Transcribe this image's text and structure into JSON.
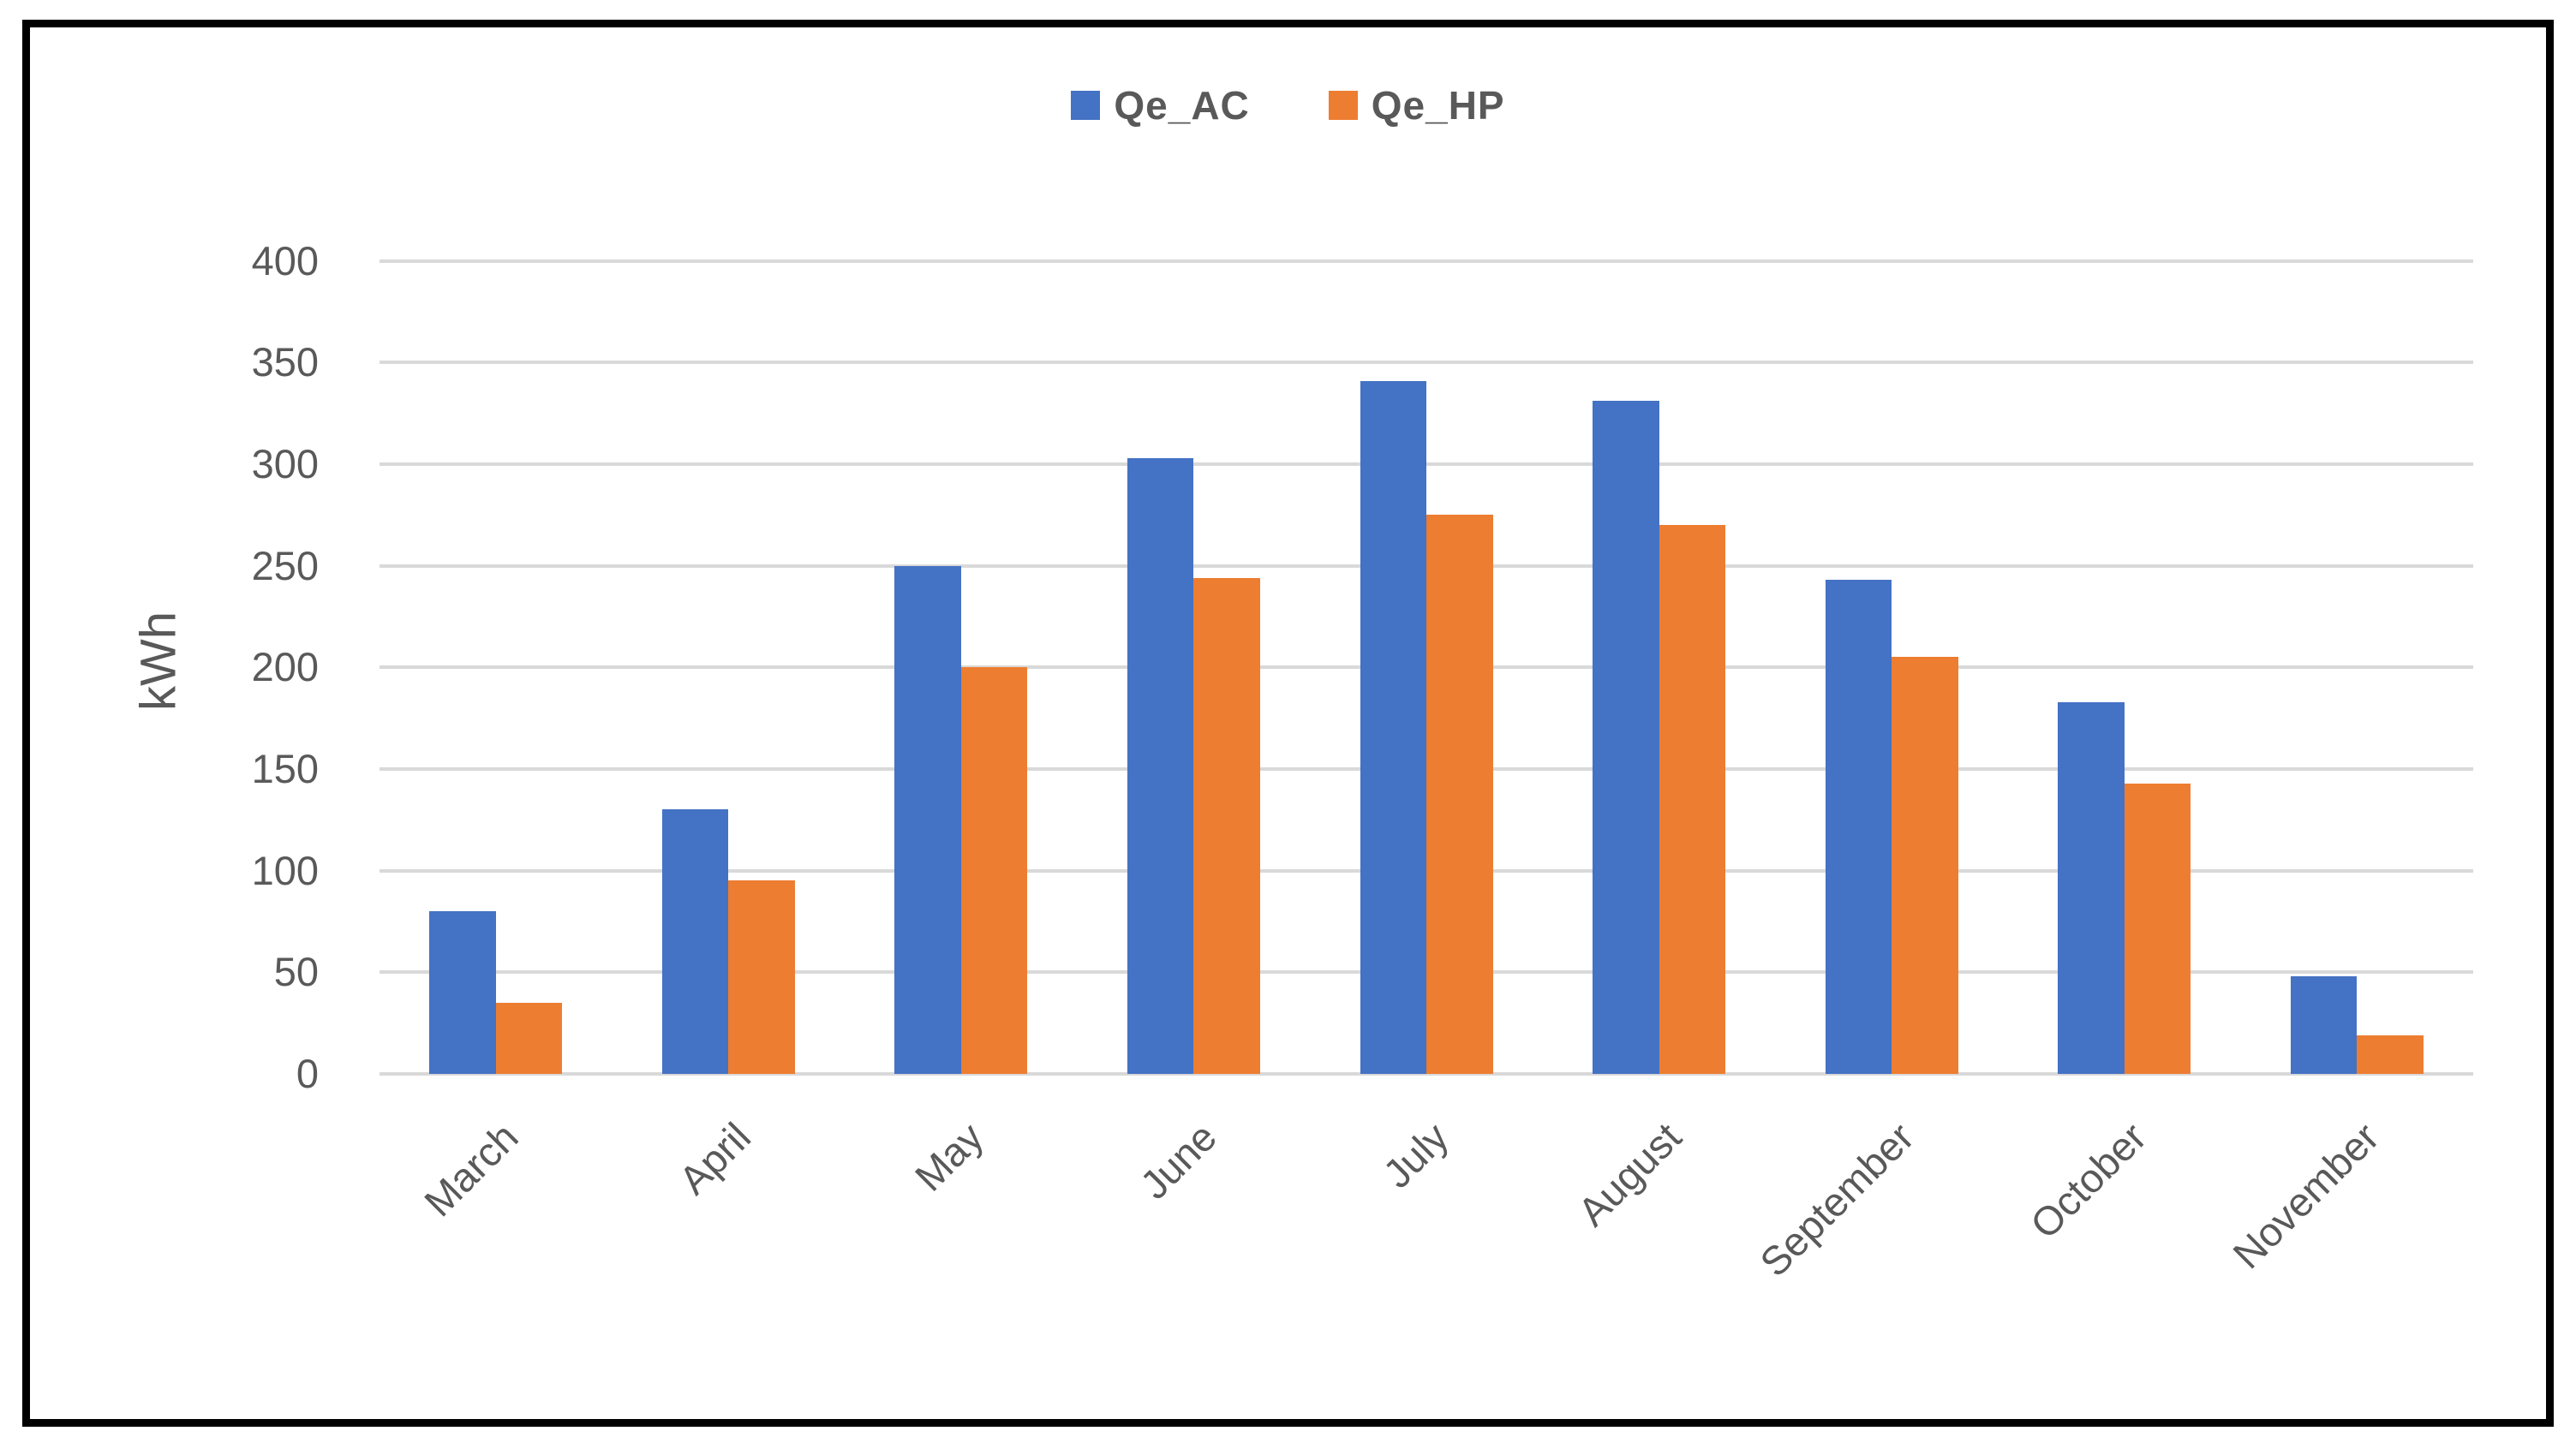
{
  "chart_data": {
    "type": "bar",
    "title": "",
    "categories": [
      "March",
      "April",
      "May",
      "June",
      "July",
      "August",
      "September",
      "October",
      "November"
    ],
    "series": [
      {
        "name": "Qe_AC",
        "color": "#4472C4",
        "values": [
          80,
          130,
          250,
          303,
          341,
          331,
          243,
          183,
          48
        ]
      },
      {
        "name": "Qe_HP",
        "color": "#ED7D31",
        "values": [
          35,
          95,
          200,
          244,
          275,
          270,
          205,
          143,
          19
        ]
      }
    ],
    "xlabel": "",
    "ylabel": "kWh",
    "y_ticks": [
      0,
      50,
      100,
      150,
      200,
      250,
      300,
      350,
      400
    ],
    "ylim": [
      0,
      400
    ],
    "grid": "horizontal-only",
    "legend_position": "top-center",
    "x_tick_rotation_deg": 45
  },
  "legend": {
    "items": [
      {
        "label": "Qe_AC",
        "color": "#4472C4"
      },
      {
        "label": "Qe_HP",
        "color": "#ED7D31"
      }
    ]
  },
  "colors": {
    "grid": "#D9D9D9",
    "axis_text": "#595959",
    "frame_border": "#000000",
    "background": "#FFFFFF"
  }
}
